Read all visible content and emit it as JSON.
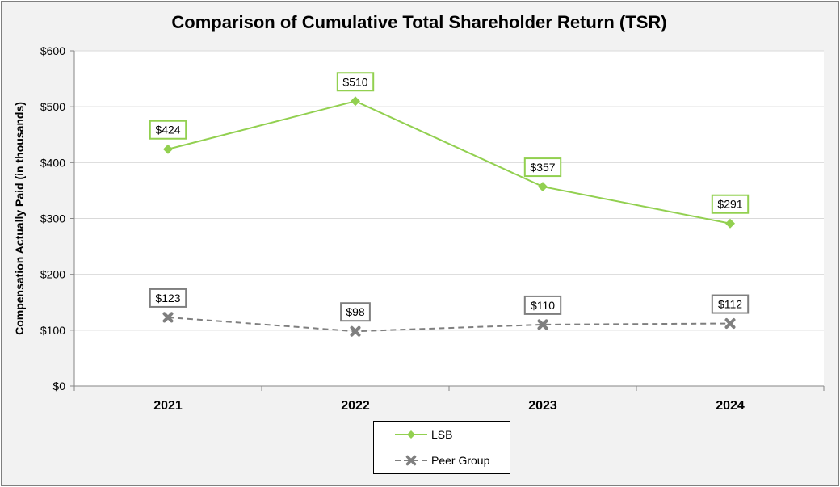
{
  "chart_data": {
    "type": "line",
    "title": "Comparison of Cumulative Total Shareholder Return (TSR)",
    "ylabel": "Compensation Actually Paid (in thousands)",
    "xlabel": "",
    "categories": [
      "2021",
      "2022",
      "2023",
      "2024"
    ],
    "ylim": [
      0,
      600
    ],
    "yticks": [
      0,
      100,
      200,
      300,
      400,
      500,
      600
    ],
    "ytick_labels": [
      "$0",
      "$100",
      "$200",
      "$300",
      "$400",
      "$500",
      "$600"
    ],
    "grid": true,
    "legend_position": "bottom",
    "series": [
      {
        "name": "LSB",
        "values": [
          424,
          510,
          357,
          291
        ],
        "labels": [
          "$424",
          "$510",
          "$357",
          "$291"
        ],
        "color": "#92d050",
        "line_style": "solid",
        "marker": "diamond"
      },
      {
        "name": "Peer Group",
        "values": [
          123,
          98,
          110,
          112
        ],
        "labels": [
          "$123",
          "$98",
          "$110",
          "$112"
        ],
        "color": "#7f7f7f",
        "line_style": "dashed",
        "marker": "x"
      }
    ]
  },
  "legend": {
    "items": [
      "LSB",
      "Peer Group"
    ]
  }
}
